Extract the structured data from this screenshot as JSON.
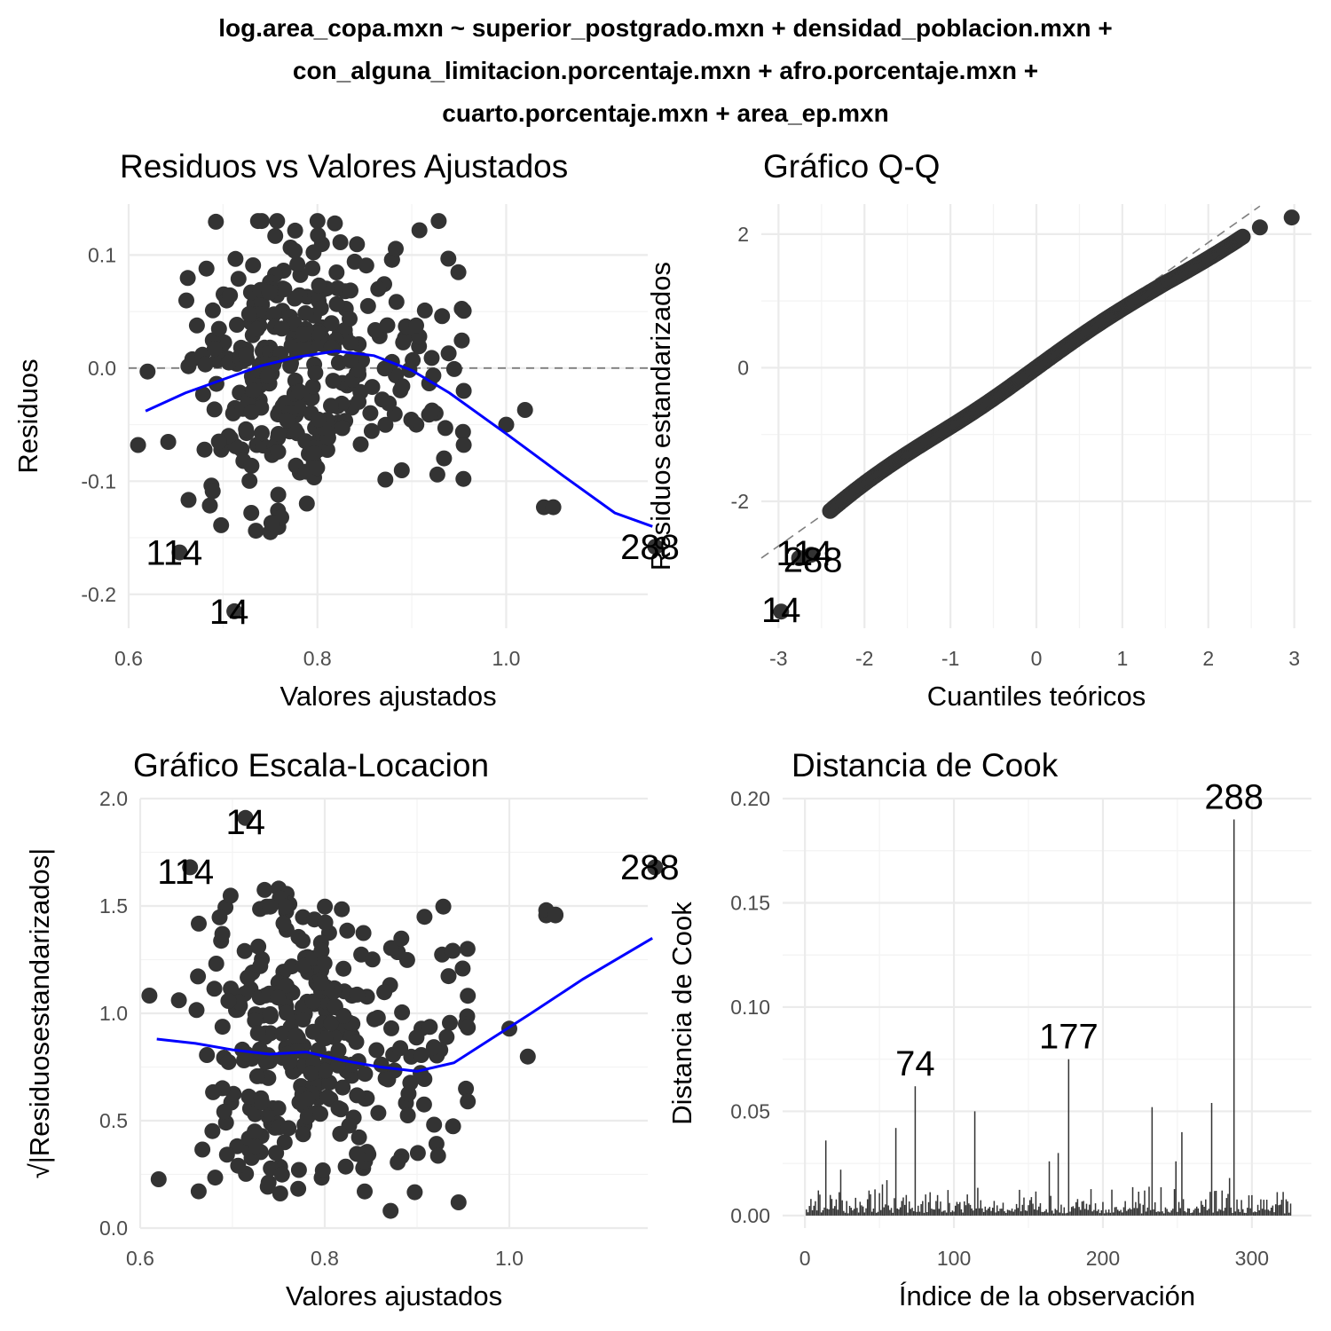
{
  "figure": {
    "title_lines": [
      "log.area_copa.mxn ~ superior_postgrado.mxn + densidad_poblacion.mxn +",
      "con_alguna_limitacion.porcentaje.mxn + afro.porcentaje.mxn +",
      "cuarto.porcentaje.mxn + area_ep.mxn"
    ]
  },
  "colors": {
    "points": "#333333",
    "smooth": "#0000ff",
    "grid": "#ebebeb",
    "refline": "#7f7f7f",
    "text": "#000000",
    "tick": "#4d4d4d"
  },
  "chart_data": [
    {
      "id": "residuals",
      "type": "scatter",
      "title": "Residuos vs Valores Ajustados",
      "xlabel": "Valores ajustados",
      "ylabel": "Residuos",
      "xlim": [
        0.6,
        1.15
      ],
      "ylim": [
        -0.23,
        0.145
      ],
      "xticks": [
        0.6,
        0.8,
        1.0
      ],
      "xtick_labels": [
        "0.6",
        "0.8",
        "1.0"
      ],
      "yticks": [
        -0.2,
        -0.1,
        0.0,
        0.1
      ],
      "ytick_labels": [
        "-0.2",
        "-0.1",
        "0.0",
        "0.1"
      ],
      "hline": 0,
      "smooth": [
        [
          0.618,
          -0.038
        ],
        [
          0.66,
          -0.022
        ],
        [
          0.7,
          -0.01
        ],
        [
          0.74,
          0.002
        ],
        [
          0.78,
          0.01
        ],
        [
          0.82,
          0.015
        ],
        [
          0.86,
          0.011
        ],
        [
          0.9,
          -0.002
        ],
        [
          0.94,
          -0.022
        ],
        [
          1.0,
          -0.058
        ],
        [
          1.06,
          -0.095
        ],
        [
          1.115,
          -0.128
        ],
        [
          1.155,
          -0.14
        ]
      ],
      "labels": [
        {
          "text": "114",
          "x": 0.654,
          "y": -0.163
        },
        {
          "text": "14",
          "x": 0.712,
          "y": -0.215
        },
        {
          "text": "288",
          "x": 1.158,
          "y": -0.158
        }
      ],
      "highlight": [
        [
          0.654,
          -0.163
        ],
        [
          0.712,
          -0.215
        ],
        [
          1.158,
          -0.158
        ]
      ]
    },
    {
      "id": "qq",
      "type": "scatter",
      "title": "Gráfico Q-Q",
      "xlabel": "Cuantiles teóricos",
      "ylabel": "Residuos estandarizados",
      "xlim": [
        -3.2,
        3.2
      ],
      "ylim": [
        -3.9,
        2.45
      ],
      "xticks": [
        -3,
        -2,
        -1,
        0,
        1,
        2,
        3
      ],
      "xtick_labels": [
        "-3",
        "-2",
        "-1",
        "0",
        "1",
        "2",
        "3"
      ],
      "yticks": [
        -2,
        0,
        2
      ],
      "ytick_labels": [
        "-2",
        "0",
        "2"
      ],
      "refline": [
        [
          -3.2,
          -2.85
        ],
        [
          2.6,
          2.42
        ]
      ],
      "labels": [
        {
          "text": "288",
          "x": -2.6,
          "y": -2.9
        },
        {
          "text": "114",
          "x": -2.7,
          "y": -2.8
        },
        {
          "text": "14",
          "x": -2.97,
          "y": -3.65
        }
      ],
      "highlight": [
        [
          -2.97,
          -3.65
        ],
        [
          -2.76,
          -2.85
        ],
        [
          -2.62,
          -2.8
        ],
        [
          2.97,
          2.25
        ],
        [
          2.6,
          2.1
        ]
      ]
    },
    {
      "id": "scale_location",
      "type": "scatter",
      "title": "Gráfico Escala-Locacion",
      "xlabel": "Valores ajustados",
      "ylabel": "√|Residuosestandarizados|",
      "xlim": [
        0.6,
        1.15
      ],
      "ylim": [
        0.0,
        2.0
      ],
      "xticks": [
        0.6,
        0.8,
        1.0
      ],
      "xtick_labels": [
        "0.6",
        "0.8",
        "1.0"
      ],
      "yticks": [
        0.0,
        0.5,
        1.0,
        1.5,
        2.0
      ],
      "ytick_labels": [
        "0.0",
        "0.5",
        "1.0",
        "1.5",
        "2.0"
      ],
      "smooth": [
        [
          0.618,
          0.88
        ],
        [
          0.66,
          0.86
        ],
        [
          0.7,
          0.83
        ],
        [
          0.74,
          0.81
        ],
        [
          0.78,
          0.82
        ],
        [
          0.82,
          0.78
        ],
        [
          0.86,
          0.75
        ],
        [
          0.9,
          0.73
        ],
        [
          0.94,
          0.77
        ],
        [
          0.98,
          0.88
        ],
        [
          1.02,
          0.99
        ],
        [
          1.08,
          1.16
        ],
        [
          1.155,
          1.35
        ]
      ],
      "labels": [
        {
          "text": "14",
          "x": 0.72,
          "y": 1.9
        },
        {
          "text": "114",
          "x": 0.655,
          "y": 1.67
        },
        {
          "text": "288",
          "x": 1.158,
          "y": 1.69
        }
      ],
      "highlight": [
        [
          0.714,
          1.91
        ],
        [
          0.654,
          1.68
        ],
        [
          1.158,
          1.68
        ],
        [
          1.04,
          1.48
        ],
        [
          1.05,
          1.46
        ]
      ]
    },
    {
      "id": "cooks",
      "type": "bar",
      "title": "Distancia de Cook",
      "xlabel": "Índice de la observación",
      "ylabel": "Distancia de Cook",
      "xlim": [
        -15,
        340
      ],
      "ylim": [
        -0.006,
        0.2
      ],
      "xticks": [
        0,
        100,
        200,
        300
      ],
      "xtick_labels": [
        "0",
        "100",
        "200",
        "300"
      ],
      "yticks": [
        0.0,
        0.05,
        0.1,
        0.15,
        0.2
      ],
      "ytick_labels": [
        "0.00",
        "0.05",
        "0.10",
        "0.15",
        "0.20"
      ],
      "major": [
        [
          14,
          0.036
        ],
        [
          24,
          0.022
        ],
        [
          43,
          0.012
        ],
        [
          52,
          0.015
        ],
        [
          55,
          0.017
        ],
        [
          61,
          0.042
        ],
        [
          74,
          0.062
        ],
        [
          88,
          0.007
        ],
        [
          114,
          0.05
        ],
        [
          150,
          0.005
        ],
        [
          164,
          0.026
        ],
        [
          170,
          0.03
        ],
        [
          177,
          0.075
        ],
        [
          208,
          0.004
        ],
        [
          228,
          0.012
        ],
        [
          233,
          0.052
        ],
        [
          249,
          0.026
        ],
        [
          253,
          0.04
        ],
        [
          273,
          0.054
        ],
        [
          280,
          0.012
        ],
        [
          285,
          0.018
        ],
        [
          288,
          0.19
        ],
        [
          318,
          0.005
        ]
      ],
      "labels": [
        {
          "text": "74",
          "x": 74,
          "y": 0.062
        },
        {
          "text": "177",
          "x": 177,
          "y": 0.075
        },
        {
          "text": "288",
          "x": 288,
          "y": 0.19
        }
      ]
    }
  ]
}
